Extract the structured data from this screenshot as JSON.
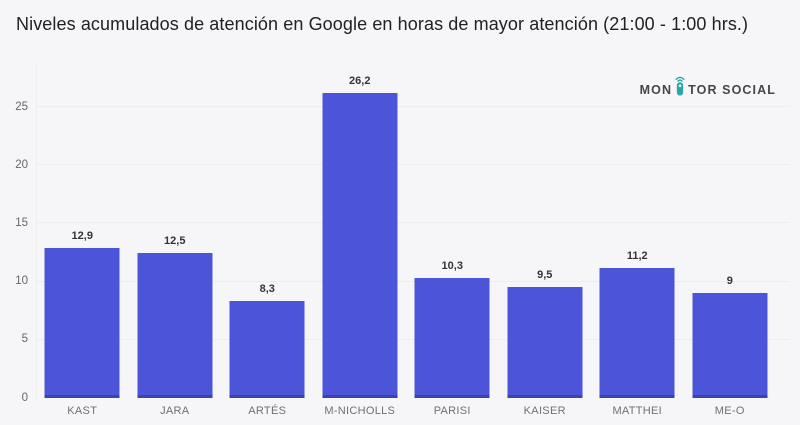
{
  "title": "Niveles acumulados de atención en Google en horas de mayor atención (21:00 - 1:00 hrs.)",
  "logo": {
    "prefix": "MON",
    "suffix": "TOR SOCIAL",
    "icon": "monitor-social-mic-icon",
    "icon_color": "#2ba6ab",
    "text_color": "#45464c"
  },
  "chart_data": {
    "type": "bar",
    "title": "Niveles acumulados de atención en Google en horas de mayor atención (21:00 - 1:00 hrs.)",
    "categories": [
      "KAST",
      "JARA",
      "ARTÉS",
      "M-NICHOLLS",
      "PARISI",
      "KAISER",
      "MATTHEI",
      "ME-O"
    ],
    "values": [
      12.9,
      12.5,
      8.3,
      26.2,
      10.3,
      9.5,
      11.2,
      9
    ],
    "value_labels": [
      "12,9",
      "12,5",
      "8,3",
      "26,2",
      "10,3",
      "9,5",
      "11,2",
      "9"
    ],
    "xlabel": "",
    "ylabel": "",
    "ylim": [
      0,
      27.75
    ],
    "yticks": [
      0,
      5,
      10,
      15,
      20,
      25
    ],
    "grid": true,
    "legend": false,
    "bar_color": "#4c55d8",
    "bar_bottom_edge_color": "#3c42ae",
    "decimal_separator": ","
  },
  "colors": {
    "background": "#f6f6f8",
    "gridline": "#ededf0",
    "tick_label": "#63666e",
    "category_label": "#6e7077",
    "value_label": "#33343a",
    "title": "#212125"
  }
}
